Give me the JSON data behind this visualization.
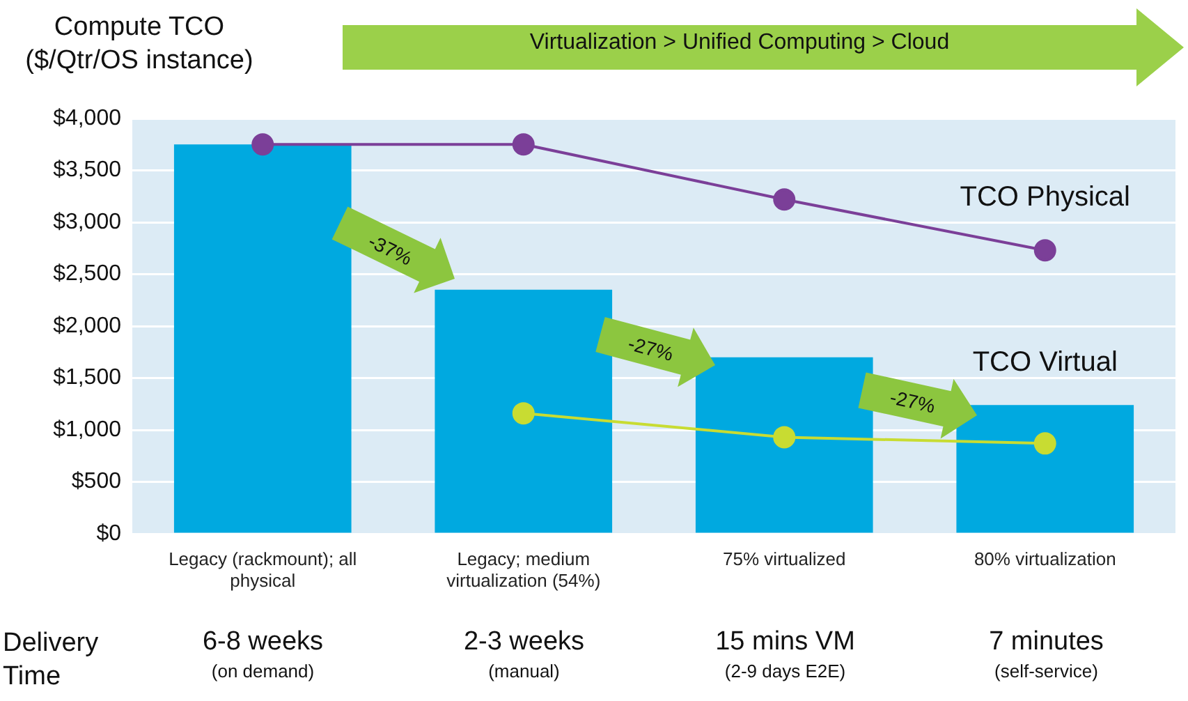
{
  "chart_data": {
    "type": "bar",
    "ylabel": "Compute TCO ($/Qtr/OS instance)",
    "categories": [
      "Legacy (rackmount); all physical",
      "Legacy; medium virtualization (54%)",
      "75% virtualized",
      "80% virtualization"
    ],
    "series": [
      {
        "color": "#00a9e0",
        "values": [
          3750,
          2350,
          1700,
          1240
        ]
      },
      {
        "type": "line",
        "name": "TCO Physical",
        "color": "#7b3f98",
        "values": [
          3750,
          3750,
          3220,
          2730
        ]
      },
      {
        "type": "line",
        "name": "TCO Virtual",
        "color": "#c8dc32",
        "values": [
          null,
          1160,
          930,
          870
        ]
      }
    ],
    "ylim": [
      0,
      4000
    ],
    "yticks": [
      {
        "value": 0,
        "label": "$0"
      },
      {
        "value": 500,
        "label": "$500"
      },
      {
        "value": 1000,
        "label": "$1,000"
      },
      {
        "value": 1500,
        "label": "$1,500"
      },
      {
        "value": 2000,
        "label": "$2,000"
      },
      {
        "value": 2500,
        "label": "$2,500"
      },
      {
        "value": 3000,
        "label": "$3,000"
      },
      {
        "value": 3500,
        "label": "$3,500"
      },
      {
        "value": 4000,
        "label": "$4,000"
      }
    ],
    "grid": "y",
    "marker": "circle",
    "legend": false,
    "annotations": [
      "Virtualization > Unified Computing > Cloud",
      "-37%",
      "-27%",
      "-27%",
      "Delivery Time",
      "6-8 weeks",
      "(on demand)",
      "2-3 weeks",
      "(manual)",
      "15 mins VM",
      "(2-9 days E2E)",
      "7 minutes",
      "(self-service)"
    ]
  }
}
